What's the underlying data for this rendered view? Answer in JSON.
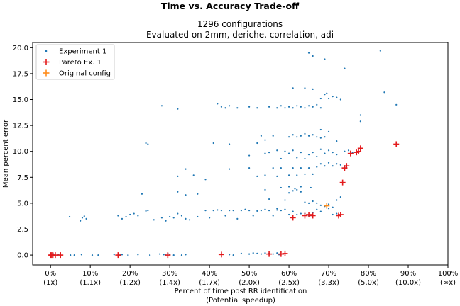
{
  "chart_data": {
    "type": "scatter",
    "title": "Time vs. Accuracy Trade-off",
    "subtitle_lines": [
      "1296 configurations",
      "Evaluated on 2mm, deriche, correlation, adi"
    ],
    "xlabel_lines": [
      "Percent of time post RR identification",
      "(Potential speedup)"
    ],
    "ylabel": "Mean percent error",
    "xlim": [
      -0.045,
      1.0
    ],
    "ylim": [
      -0.95,
      20.5
    ],
    "x_ticks": [
      {
        "value": 0.0,
        "label": "0%",
        "sublabel": "(1x)"
      },
      {
        "value": 0.1,
        "label": "10%",
        "sublabel": "(1.1x)"
      },
      {
        "value": 0.2,
        "label": "20%",
        "sublabel": "(1.2x)"
      },
      {
        "value": 0.3,
        "label": "30%",
        "sublabel": "(1.4x)"
      },
      {
        "value": 0.4,
        "label": "40%",
        "sublabel": "(1.7x)"
      },
      {
        "value": 0.5,
        "label": "50%",
        "sublabel": "(2.0x)"
      },
      {
        "value": 0.6,
        "label": "60%",
        "sublabel": "(2.5x)"
      },
      {
        "value": 0.7,
        "label": "70%",
        "sublabel": "(3.3x)"
      },
      {
        "value": 0.8,
        "label": "80%",
        "sublabel": "(5.0x)"
      },
      {
        "value": 0.9,
        "label": "90%",
        "sublabel": "(10.0x)"
      },
      {
        "value": 1.0,
        "label": "100%",
        "sublabel": "(∞x)"
      }
    ],
    "y_ticks": [
      {
        "value": 0.0,
        "label": "0.0"
      },
      {
        "value": 2.5,
        "label": "2.5"
      },
      {
        "value": 5.0,
        "label": "5.0"
      },
      {
        "value": 7.5,
        "label": "7.5"
      },
      {
        "value": 10.0,
        "label": "10.0"
      },
      {
        "value": 12.5,
        "label": "12.5"
      },
      {
        "value": 15.0,
        "label": "15.0"
      },
      {
        "value": 17.5,
        "label": "17.5"
      },
      {
        "value": 20.0,
        "label": "20.0"
      }
    ],
    "grid": false,
    "legend": {
      "placement": "top-left"
    },
    "series": [
      {
        "name": "Experiment 1",
        "marker": "dot",
        "color": "#1f77b4",
        "points": [
          [
            0.0,
            0.0
          ],
          [
            0.003,
            0.05
          ],
          [
            0.007,
            0.1
          ],
          [
            0.012,
            0.0
          ],
          [
            0.02,
            0.05
          ],
          [
            0.025,
            0.0
          ],
          [
            0.05,
            0.0
          ],
          [
            0.06,
            0.0
          ],
          [
            0.078,
            0.05
          ],
          [
            0.105,
            0.0
          ],
          [
            0.12,
            0.0
          ],
          [
            0.16,
            0.05
          ],
          [
            0.17,
            0.1
          ],
          [
            0.175,
            0.0
          ],
          [
            0.18,
            0.05
          ],
          [
            0.195,
            0.0
          ],
          [
            0.22,
            0.05
          ],
          [
            0.25,
            0.0
          ],
          [
            0.275,
            0.1
          ],
          [
            0.285,
            0.05
          ],
          [
            0.29,
            0.0
          ],
          [
            0.295,
            0.15
          ],
          [
            0.3,
            0.05
          ],
          [
            0.31,
            0.0
          ],
          [
            0.33,
            0.0
          ],
          [
            0.34,
            0.05
          ],
          [
            0.43,
            0.1
          ],
          [
            0.45,
            0.05
          ],
          [
            0.46,
            0.0
          ],
          [
            0.48,
            0.15
          ],
          [
            0.5,
            0.1
          ],
          [
            0.51,
            0.2
          ],
          [
            0.52,
            0.15
          ],
          [
            0.53,
            0.1
          ],
          [
            0.54,
            0.2
          ],
          [
            0.55,
            0.15
          ],
          [
            0.56,
            0.1
          ],
          [
            0.57,
            0.2
          ],
          [
            0.575,
            0.05
          ],
          [
            0.585,
            0.1
          ],
          [
            0.048,
            3.7
          ],
          [
            0.075,
            3.3
          ],
          [
            0.08,
            3.6
          ],
          [
            0.085,
            3.75
          ],
          [
            0.09,
            3.5
          ],
          [
            0.17,
            3.8
          ],
          [
            0.18,
            3.5
          ],
          [
            0.19,
            3.7
          ],
          [
            0.2,
            3.9
          ],
          [
            0.21,
            4.0
          ],
          [
            0.22,
            3.8
          ],
          [
            0.24,
            4.25
          ],
          [
            0.245,
            4.3
          ],
          [
            0.26,
            3.4
          ],
          [
            0.28,
            3.6
          ],
          [
            0.29,
            3.3
          ],
          [
            0.3,
            3.7
          ],
          [
            0.31,
            3.6
          ],
          [
            0.32,
            4.0
          ],
          [
            0.33,
            3.8
          ],
          [
            0.34,
            3.5
          ],
          [
            0.35,
            3.4
          ],
          [
            0.37,
            3.7
          ],
          [
            0.39,
            4.3
          ],
          [
            0.4,
            3.6
          ],
          [
            0.41,
            4.3
          ],
          [
            0.42,
            4.35
          ],
          [
            0.43,
            4.3
          ],
          [
            0.44,
            3.8
          ],
          [
            0.45,
            4.3
          ],
          [
            0.46,
            4.3
          ],
          [
            0.47,
            3.5
          ],
          [
            0.48,
            4.3
          ],
          [
            0.49,
            4.4
          ],
          [
            0.5,
            4.3
          ],
          [
            0.51,
            3.8
          ],
          [
            0.52,
            4.25
          ],
          [
            0.53,
            4.3
          ],
          [
            0.54,
            4.4
          ],
          [
            0.55,
            4.3
          ],
          [
            0.56,
            3.8
          ],
          [
            0.57,
            4.35
          ],
          [
            0.58,
            4.3
          ],
          [
            0.59,
            4.4
          ],
          [
            0.6,
            3.9
          ],
          [
            0.61,
            4.2
          ],
          [
            0.62,
            3.9
          ],
          [
            0.63,
            4.0
          ],
          [
            0.64,
            4.0
          ],
          [
            0.65,
            3.8
          ],
          [
            0.66,
            4.1
          ],
          [
            0.67,
            4.4
          ],
          [
            0.68,
            4.2
          ],
          [
            0.7,
            4.5
          ],
          [
            0.71,
            3.9
          ],
          [
            0.72,
            4.0
          ],
          [
            0.55,
            5.4
          ],
          [
            0.57,
            4.5
          ],
          [
            0.59,
            5.3
          ],
          [
            0.6,
            6.0
          ],
          [
            0.61,
            6.2
          ],
          [
            0.62,
            6.3
          ],
          [
            0.63,
            6.1
          ],
          [
            0.64,
            5.1
          ],
          [
            0.65,
            5.0
          ],
          [
            0.66,
            5.2
          ],
          [
            0.67,
            5.0
          ],
          [
            0.68,
            4.8
          ],
          [
            0.69,
            4.7
          ],
          [
            0.7,
            4.9
          ],
          [
            0.71,
            4.6
          ],
          [
            0.72,
            5.3
          ],
          [
            0.73,
            5.6
          ],
          [
            0.54,
            6.3
          ],
          [
            0.58,
            6.5
          ],
          [
            0.6,
            6.6
          ],
          [
            0.615,
            6.4
          ],
          [
            0.63,
            6.6
          ],
          [
            0.655,
            6.5
          ],
          [
            0.23,
            5.9
          ],
          [
            0.32,
            6.1
          ],
          [
            0.34,
            5.8
          ],
          [
            0.37,
            5.9
          ],
          [
            0.39,
            7.3
          ],
          [
            0.32,
            7.6
          ],
          [
            0.34,
            8.3
          ],
          [
            0.36,
            7.7
          ],
          [
            0.45,
            8.3
          ],
          [
            0.5,
            8.4
          ],
          [
            0.52,
            7.6
          ],
          [
            0.54,
            7.7
          ],
          [
            0.56,
            8.4
          ],
          [
            0.57,
            7.6
          ],
          [
            0.58,
            8.4
          ],
          [
            0.6,
            7.7
          ],
          [
            0.61,
            8.4
          ],
          [
            0.62,
            7.7
          ],
          [
            0.63,
            8.4
          ],
          [
            0.64,
            7.8
          ],
          [
            0.65,
            8.4
          ],
          [
            0.66,
            7.8
          ],
          [
            0.67,
            8.5
          ],
          [
            0.68,
            8.8
          ],
          [
            0.69,
            8.6
          ],
          [
            0.7,
            8.9
          ],
          [
            0.71,
            8.6
          ],
          [
            0.72,
            8.8
          ],
          [
            0.73,
            8.7
          ],
          [
            0.74,
            8.5
          ],
          [
            0.24,
            10.8
          ],
          [
            0.245,
            10.7
          ],
          [
            0.41,
            10.8
          ],
          [
            0.45,
            10.7
          ],
          [
            0.5,
            9.6
          ],
          [
            0.52,
            10.8
          ],
          [
            0.54,
            9.8
          ],
          [
            0.55,
            9.9
          ],
          [
            0.57,
            10.1
          ],
          [
            0.58,
            9.3
          ],
          [
            0.59,
            10.0
          ],
          [
            0.6,
            9.8
          ],
          [
            0.61,
            10.1
          ],
          [
            0.62,
            9.4
          ],
          [
            0.63,
            9.9
          ],
          [
            0.64,
            9.3
          ],
          [
            0.65,
            9.7
          ],
          [
            0.66,
            9.9
          ],
          [
            0.67,
            9.5
          ],
          [
            0.68,
            10.2
          ],
          [
            0.69,
            9.8
          ],
          [
            0.7,
            10.1
          ],
          [
            0.71,
            9.9
          ],
          [
            0.72,
            9.7
          ],
          [
            0.74,
            10.0
          ],
          [
            0.75,
            10.1
          ],
          [
            0.76,
            9.9
          ],
          [
            0.53,
            11.5
          ],
          [
            0.54,
            11.1
          ],
          [
            0.56,
            11.5
          ],
          [
            0.6,
            11.4
          ],
          [
            0.61,
            11.6
          ],
          [
            0.62,
            11.4
          ],
          [
            0.63,
            11.5
          ],
          [
            0.64,
            11.7
          ],
          [
            0.65,
            11.5
          ],
          [
            0.66,
            11.6
          ],
          [
            0.67,
            11.4
          ],
          [
            0.68,
            11.3
          ],
          [
            0.69,
            11.4
          ],
          [
            0.28,
            14.4
          ],
          [
            0.32,
            14.1
          ],
          [
            0.42,
            14.6
          ],
          [
            0.43,
            14.3
          ],
          [
            0.44,
            14.2
          ],
          [
            0.45,
            14.4
          ],
          [
            0.47,
            14.2
          ],
          [
            0.5,
            14.3
          ],
          [
            0.52,
            14.2
          ],
          [
            0.55,
            14.3
          ],
          [
            0.57,
            14.2
          ],
          [
            0.58,
            14.4
          ],
          [
            0.59,
            14.2
          ],
          [
            0.6,
            14.3
          ],
          [
            0.61,
            14.2
          ],
          [
            0.62,
            14.4
          ],
          [
            0.63,
            14.3
          ],
          [
            0.64,
            14.2
          ],
          [
            0.65,
            14.4
          ],
          [
            0.66,
            14.3
          ],
          [
            0.67,
            14.5
          ],
          [
            0.68,
            14.2
          ],
          [
            0.61,
            16.1
          ],
          [
            0.64,
            16.1
          ],
          [
            0.66,
            16.0
          ],
          [
            0.69,
            15.5
          ],
          [
            0.7,
            15.1
          ],
          [
            0.71,
            15.3
          ],
          [
            0.72,
            15.2
          ],
          [
            0.73,
            15.0
          ],
          [
            0.68,
            15.1
          ],
          [
            0.695,
            15.6
          ],
          [
            0.65,
            19.5
          ],
          [
            0.66,
            19.2
          ],
          [
            0.69,
            18.9
          ],
          [
            0.74,
            18.0
          ],
          [
            0.78,
            13.5
          ],
          [
            0.78,
            12.9
          ],
          [
            0.83,
            19.7
          ],
          [
            0.84,
            15.7
          ],
          [
            0.87,
            14.5
          ],
          [
            0.68,
            12.1
          ],
          [
            0.7,
            11.9
          ],
          [
            0.72,
            11.0
          ]
        ]
      },
      {
        "name": "Pareto Ex. 1",
        "marker": "plus",
        "color": "#e31a1c",
        "points": [
          [
            0.0,
            0.0
          ],
          [
            0.003,
            0.0
          ],
          [
            0.006,
            0.0
          ],
          [
            0.012,
            0.0
          ],
          [
            0.025,
            0.0
          ],
          [
            0.17,
            0.0
          ],
          [
            0.295,
            0.0
          ],
          [
            0.43,
            0.05
          ],
          [
            0.55,
            0.1
          ],
          [
            0.58,
            0.1
          ],
          [
            0.59,
            0.15
          ],
          [
            0.61,
            3.6
          ],
          [
            0.64,
            3.8
          ],
          [
            0.65,
            3.9
          ],
          [
            0.66,
            3.8
          ],
          [
            0.725,
            3.8
          ],
          [
            0.73,
            3.9
          ],
          [
            0.735,
            7.0
          ],
          [
            0.74,
            8.4
          ],
          [
            0.745,
            8.6
          ],
          [
            0.755,
            9.8
          ],
          [
            0.77,
            9.9
          ],
          [
            0.775,
            10.0
          ],
          [
            0.78,
            10.3
          ],
          [
            0.87,
            10.7
          ]
        ]
      },
      {
        "name": "Original config",
        "marker": "plus",
        "color": "#ff8c1a",
        "points": [
          [
            0.695,
            4.75
          ]
        ]
      }
    ]
  }
}
